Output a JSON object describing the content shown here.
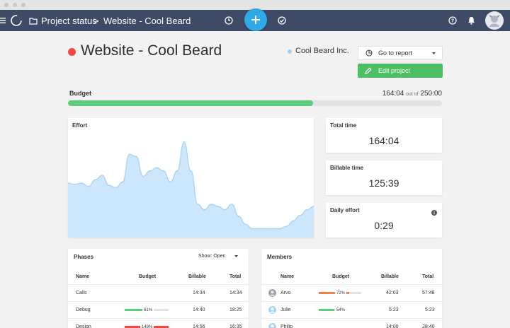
{
  "nav": {
    "breadcrumb_root": "Project status",
    "separator": ">",
    "breadcrumb_current": "Website - Cool Beard"
  },
  "project": {
    "title": "Website - Cool Beard",
    "status_color": "#f2473f",
    "client": "Cool Beard Inc.",
    "client_color": "#9fd0f3"
  },
  "actions": {
    "report_label": "Go to report",
    "edit_label": "Edit project"
  },
  "budget": {
    "label": "Budget",
    "used": "164:04",
    "out_of": "out of",
    "total": "250:00",
    "fraction": 0.656
  },
  "effort": {
    "title": "Effort",
    "color": "#c7e3f9",
    "values": [
      0.49,
      0.48,
      0.49,
      0.46,
      0.52,
      0.56,
      0.47,
      0.45,
      0.5,
      0.75,
      0.73,
      0.55,
      0.6,
      0.63,
      0.6,
      0.5,
      0.6,
      0.86,
      0.6,
      0.3,
      0.25,
      0.3,
      0.28,
      0.25,
      0.3,
      0.19,
      0.12,
      0.08,
      0.08,
      0.08,
      0.08,
      0.08,
      0.1,
      0.15,
      0.2,
      0.25,
      0.28
    ]
  },
  "stats": {
    "total_time_label": "Total time",
    "total_time": "164:04",
    "billable_label": "Billable time",
    "billable": "125:39",
    "daily_label": "Daily effort",
    "daily": "0:29"
  },
  "phases": {
    "title": "Phases",
    "show_label": "Show: Open",
    "headers": [
      "Name",
      "Budget",
      "Billable",
      "Total"
    ],
    "rows": [
      {
        "name": "Calls",
        "pct": "",
        "fill": 0,
        "color": "#5ccd7d",
        "billable": "14:34",
        "total": "14:34"
      },
      {
        "name": "Debug",
        "pct": "61%",
        "fill": 0.61,
        "color": "#5ccd7d",
        "billable": "14:40",
        "total": "18:25"
      },
      {
        "name": "Design",
        "pct": "149%",
        "fill": 1.0,
        "color": "#f2473f",
        "billable": "14:56",
        "total": "16:35"
      }
    ]
  },
  "members": {
    "title": "Members",
    "headers": [
      "Name",
      "Budget",
      "Billable",
      "Total"
    ],
    "rows": [
      {
        "name": "Arvo",
        "pct": "72%",
        "fill": 0.72,
        "color": "#f2804a",
        "billable": "42:03",
        "total": "57:48"
      },
      {
        "name": "Julie",
        "pct": "54%",
        "fill": 0.54,
        "color": "#5ccd7d",
        "billable": "5:23",
        "total": "5:23"
      },
      {
        "name": "Philip",
        "pct": "",
        "fill": 0,
        "color": "#5ccd7d",
        "billable": "14:00",
        "total": "28:40"
      }
    ]
  }
}
